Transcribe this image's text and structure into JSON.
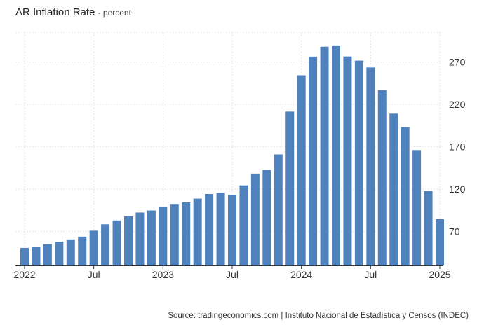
{
  "header": {
    "title": "AR Inflation Rate",
    "subtitle": "- percent"
  },
  "footer": {
    "source": "Source: tradingeconomics.com | Instituto Nacional de Estadística y Censos (INDEC)"
  },
  "colors": {
    "bar": "#4f81bd",
    "grid": "#e6e6e6",
    "axis": "#333333"
  },
  "chart_data": {
    "type": "bar",
    "title": "AR Inflation Rate",
    "subtitle": "percent",
    "xlabel": "",
    "ylabel": "",
    "categories": [
      "2022-01",
      "2022-02",
      "2022-03",
      "2022-04",
      "2022-05",
      "2022-06",
      "2022-07",
      "2022-08",
      "2022-09",
      "2022-10",
      "2022-11",
      "2022-12",
      "2023-01",
      "2023-02",
      "2023-03",
      "2023-04",
      "2023-05",
      "2023-06",
      "2023-07",
      "2023-08",
      "2023-09",
      "2023-10",
      "2023-11",
      "2023-12",
      "2024-01",
      "2024-02",
      "2024-03",
      "2024-04",
      "2024-05",
      "2024-06",
      "2024-07",
      "2024-08",
      "2024-09",
      "2024-10",
      "2024-11",
      "2024-12",
      "2025-01"
    ],
    "values": [
      50.7,
      52.3,
      55.1,
      58.0,
      60.7,
      64.0,
      71.0,
      78.5,
      83.0,
      88.0,
      92.4,
      94.8,
      98.8,
      102.5,
      104.3,
      108.8,
      114.2,
      115.6,
      113.4,
      124.4,
      138.3,
      142.7,
      160.9,
      211.4,
      254.2,
      276.2,
      287.9,
      289.4,
      276.4,
      271.5,
      263.4,
      236.7,
      209.0,
      193.0,
      166.0,
      117.8,
      84.5
    ],
    "ylim": [
      30,
      305
    ],
    "yticks": [
      70,
      120,
      170,
      220,
      270
    ],
    "yticks_labels": [
      "70",
      "120",
      "170",
      "220",
      "270"
    ],
    "xticks": [
      {
        "label": "2022",
        "index": 0
      },
      {
        "label": "Jul",
        "index": 6
      },
      {
        "label": "2023",
        "index": 12
      },
      {
        "label": "Jul",
        "index": 18
      },
      {
        "label": "2024",
        "index": 24
      },
      {
        "label": "Jul",
        "index": 30
      },
      {
        "label": "2025",
        "index": 36
      }
    ],
    "grid": true,
    "y_axis_side": "right"
  }
}
